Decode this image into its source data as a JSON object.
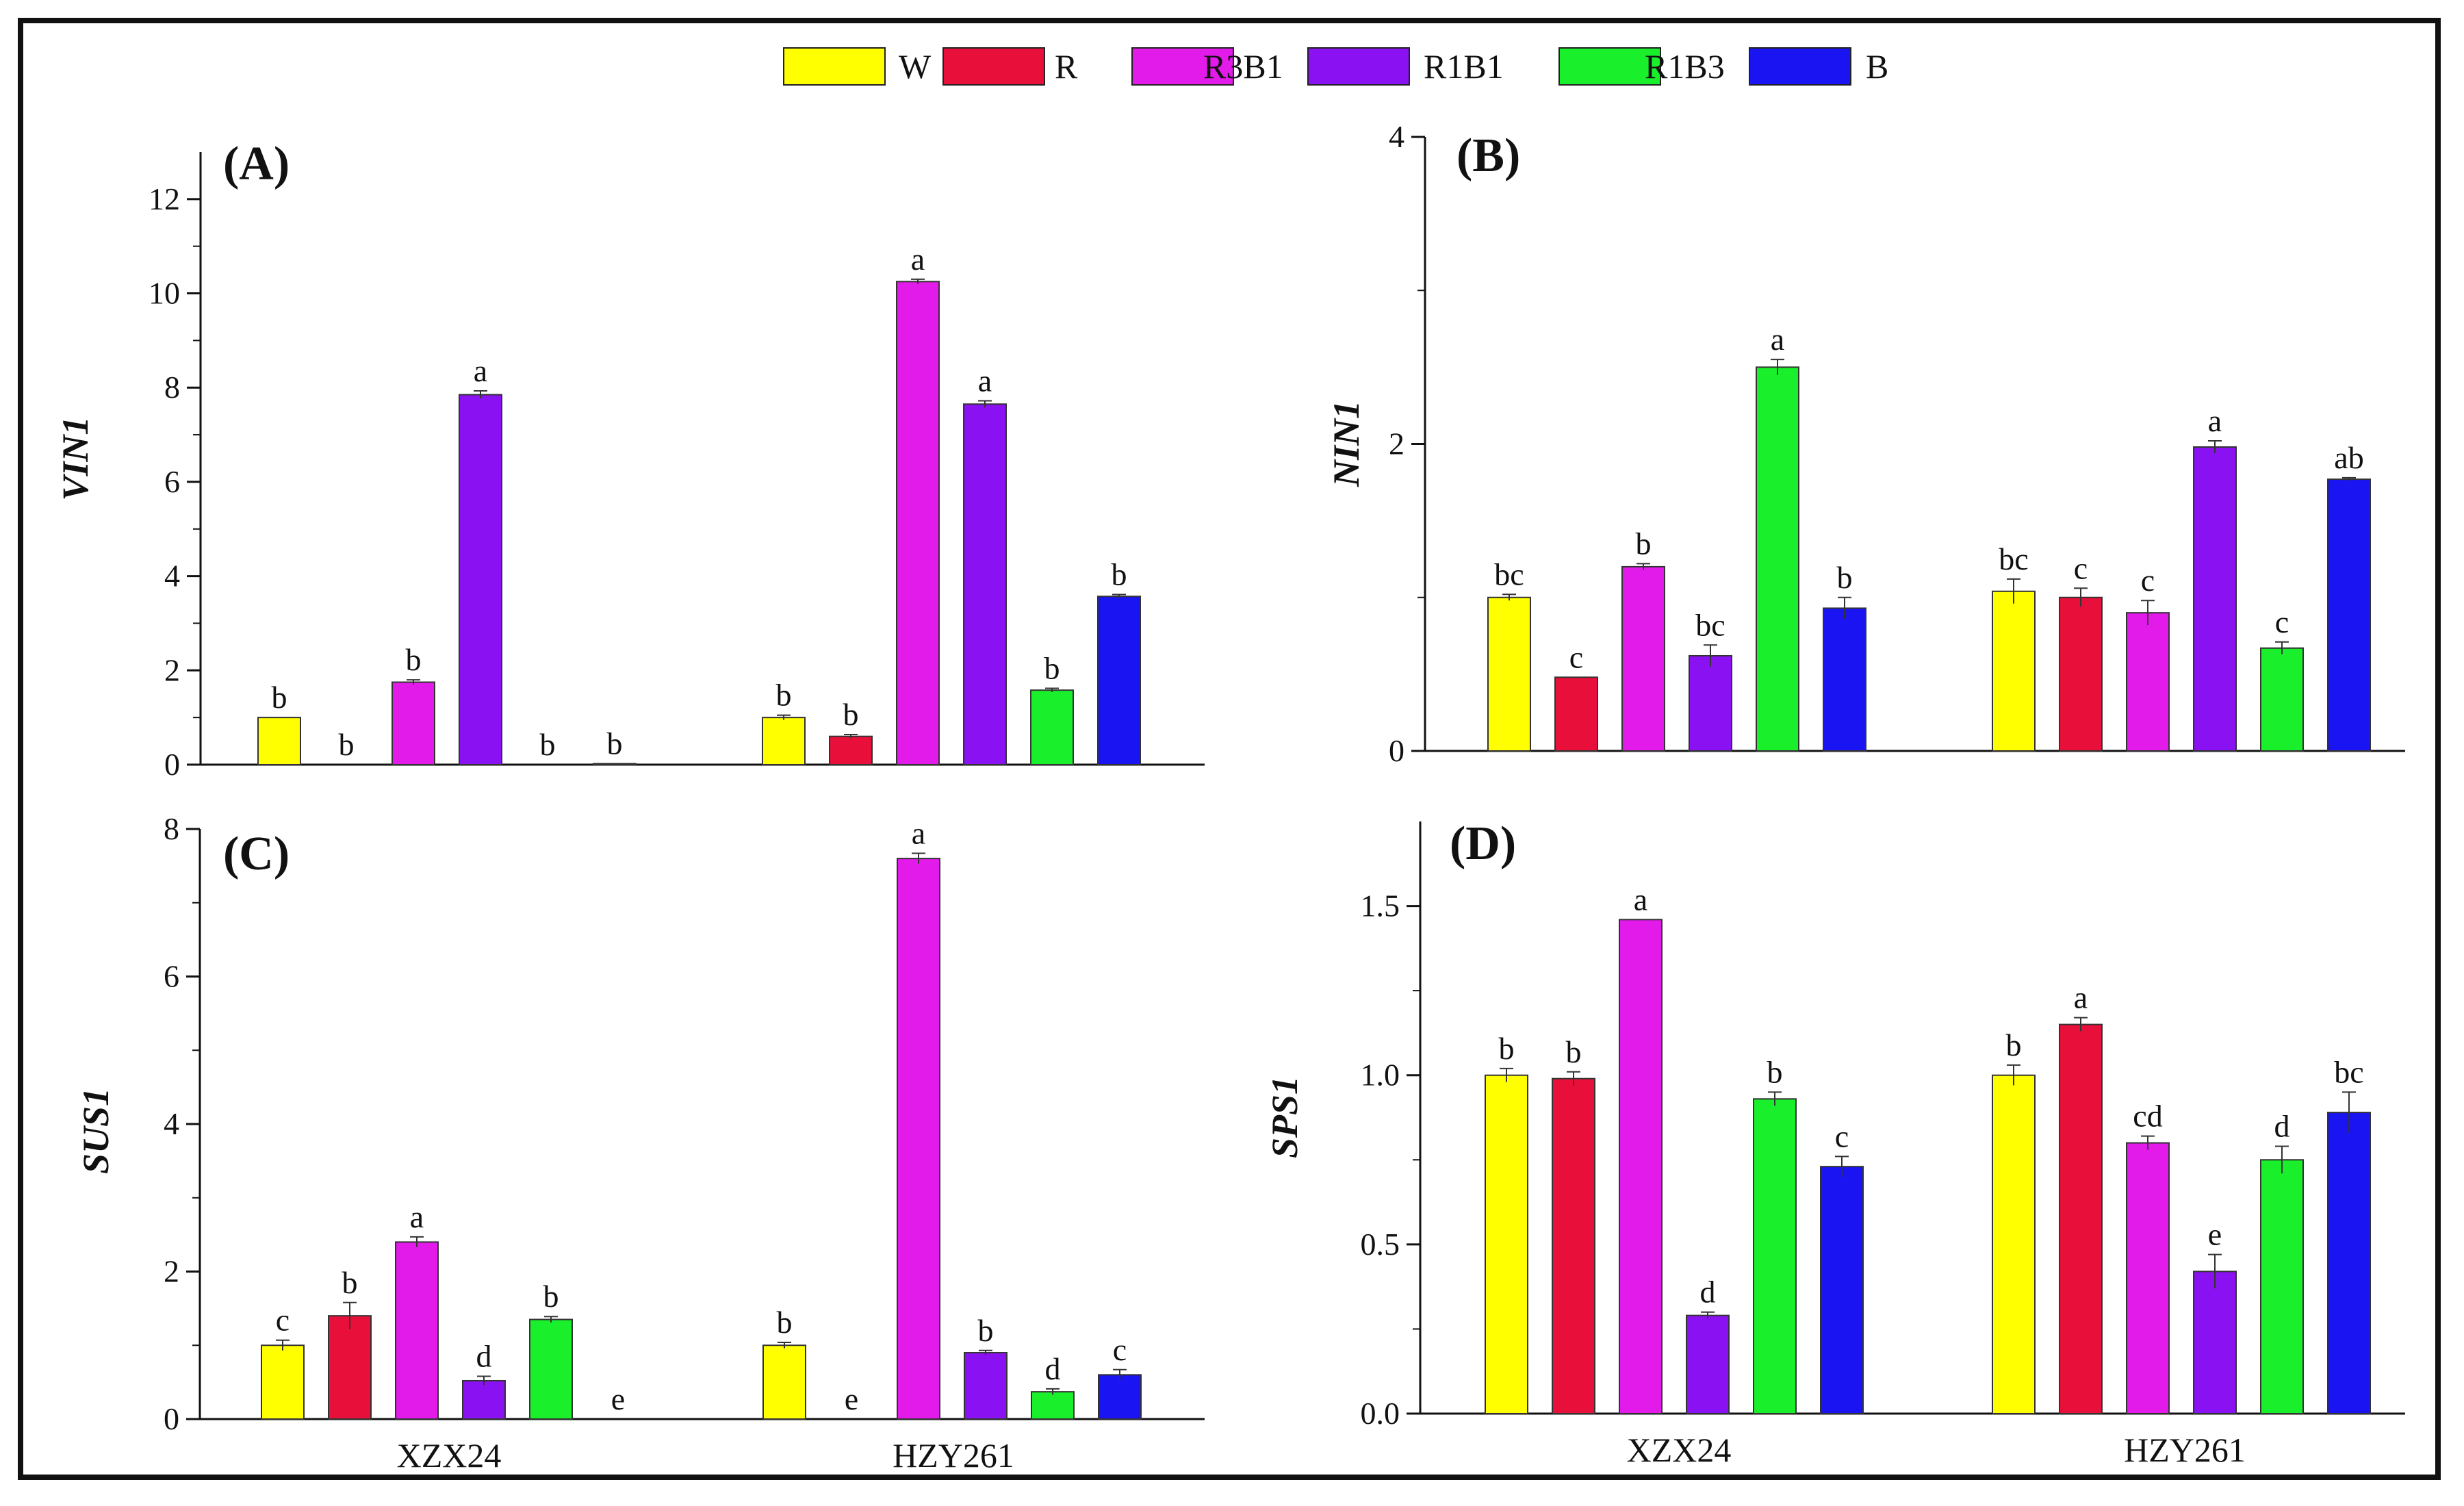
{
  "legend": [
    {
      "name": "W",
      "color": "#FFFF00"
    },
    {
      "name": "R",
      "color": "#E8103A"
    },
    {
      "name": "R3B1",
      "color": "#E21BEA"
    },
    {
      "name": "R1B1",
      "color": "#8A12F2"
    },
    {
      "name": "R1B3",
      "color": "#19F02B"
    },
    {
      "name": "B",
      "color": "#1A14F2"
    }
  ],
  "chart_data": [
    {
      "type": "bar",
      "panel": "(A)",
      "ylabel": "VIN1",
      "categories": [
        "",
        ""
      ],
      "ylim": [
        0,
        13
      ],
      "yticks": [
        0,
        2,
        4,
        6,
        8,
        10,
        12
      ],
      "series": [
        {
          "name": "W",
          "values": [
            1.0,
            1.0
          ],
          "errors": [
            0.0,
            0.05
          ],
          "letters": [
            "b",
            "b"
          ]
        },
        {
          "name": "R",
          "values": [
            0.0,
            0.6
          ],
          "errors": [
            0.0,
            0.04
          ],
          "letters": [
            "b",
            "b"
          ]
        },
        {
          "name": "R3B1",
          "values": [
            1.75,
            10.25
          ],
          "errors": [
            0.05,
            0.05
          ],
          "letters": [
            "b",
            "a"
          ]
        },
        {
          "name": "R1B1",
          "values": [
            7.85,
            7.65
          ],
          "errors": [
            0.08,
            0.07
          ],
          "letters": [
            "a",
            "a"
          ]
        },
        {
          "name": "R1B3",
          "values": [
            0.0,
            1.58
          ],
          "errors": [
            0.0,
            0.04
          ],
          "letters": [
            "b",
            "b"
          ]
        },
        {
          "name": "B",
          "values": [
            0.02,
            3.57
          ],
          "errors": [
            0.0,
            0.04
          ],
          "letters": [
            "b",
            "b"
          ]
        }
      ]
    },
    {
      "type": "bar",
      "panel": "(B)",
      "ylabel": "NIN1",
      "categories": [
        "",
        ""
      ],
      "ylim": [
        0,
        4
      ],
      "yticks": [
        0,
        2,
        4
      ],
      "series": [
        {
          "name": "W",
          "values": [
            1.0,
            1.04
          ],
          "errors": [
            0.02,
            0.08
          ],
          "letters": [
            "bc",
            "bc"
          ]
        },
        {
          "name": "R",
          "values": [
            0.48,
            1.0
          ],
          "errors": [
            0.0,
            0.06
          ],
          "letters": [
            "c",
            "c"
          ]
        },
        {
          "name": "R3B1",
          "values": [
            1.2,
            0.9
          ],
          "errors": [
            0.02,
            0.08
          ],
          "letters": [
            "b",
            "c"
          ]
        },
        {
          "name": "R1B1",
          "values": [
            0.62,
            1.98
          ],
          "errors": [
            0.07,
            0.04
          ],
          "letters": [
            "bc",
            "a"
          ]
        },
        {
          "name": "R1B3",
          "values": [
            2.5,
            0.67
          ],
          "errors": [
            0.05,
            0.04
          ],
          "letters": [
            "a",
            "c"
          ]
        },
        {
          "name": "B",
          "values": [
            0.93,
            1.77
          ],
          "errors": [
            0.07,
            0.01
          ],
          "letters": [
            "b",
            "ab"
          ]
        }
      ]
    },
    {
      "type": "bar",
      "panel": "(C)",
      "ylabel": "SUS1",
      "categories": [
        "XZX24",
        "HZY261"
      ],
      "ylim": [
        0,
        8
      ],
      "yticks": [
        0,
        2,
        4,
        6,
        8
      ],
      "series": [
        {
          "name": "W",
          "values": [
            1.0,
            1.0
          ],
          "errors": [
            0.07,
            0.04
          ],
          "letters": [
            "c",
            "b"
          ]
        },
        {
          "name": "R",
          "values": [
            1.4,
            0.0
          ],
          "errors": [
            0.18,
            0.0
          ],
          "letters": [
            "b",
            "e"
          ]
        },
        {
          "name": "R3B1",
          "values": [
            2.4,
            7.6
          ],
          "errors": [
            0.07,
            0.07
          ],
          "letters": [
            "a",
            "a"
          ]
        },
        {
          "name": "R1B1",
          "values": [
            0.52,
            0.9
          ],
          "errors": [
            0.06,
            0.03
          ],
          "letters": [
            "d",
            "b"
          ]
        },
        {
          "name": "R1B3",
          "values": [
            1.35,
            0.37
          ],
          "errors": [
            0.04,
            0.04
          ],
          "letters": [
            "b",
            "d"
          ]
        },
        {
          "name": "B",
          "values": [
            0.0,
            0.6
          ],
          "errors": [
            0.0,
            0.07
          ],
          "letters": [
            "e",
            "c"
          ]
        }
      ]
    },
    {
      "type": "bar",
      "panel": "(D)",
      "ylabel": "SPS1",
      "categories": [
        "XZX24",
        "HZY261"
      ],
      "ylim": [
        0,
        1.75
      ],
      "yticks": [
        "0.0",
        "0.5",
        "1.0",
        "1.5"
      ],
      "series": [
        {
          "name": "W",
          "values": [
            1.0,
            1.0
          ],
          "errors": [
            0.02,
            0.03
          ],
          "letters": [
            "b",
            "b"
          ]
        },
        {
          "name": "R",
          "values": [
            0.99,
            1.15
          ],
          "errors": [
            0.02,
            0.02
          ],
          "letters": [
            "b",
            "a"
          ]
        },
        {
          "name": "R3B1",
          "values": [
            1.46,
            0.8
          ],
          "errors": [
            0.0,
            0.02
          ],
          "letters": [
            "a",
            "cd"
          ]
        },
        {
          "name": "R1B1",
          "values": [
            0.29,
            0.42
          ],
          "errors": [
            0.01,
            0.05
          ],
          "letters": [
            "d",
            "e"
          ]
        },
        {
          "name": "R1B3",
          "values": [
            0.93,
            0.75
          ],
          "errors": [
            0.02,
            0.04
          ],
          "letters": [
            "b",
            "d"
          ]
        },
        {
          "name": "B",
          "values": [
            0.73,
            0.89
          ],
          "errors": [
            0.03,
            0.06
          ],
          "letters": [
            "c",
            "bc"
          ]
        }
      ]
    }
  ]
}
